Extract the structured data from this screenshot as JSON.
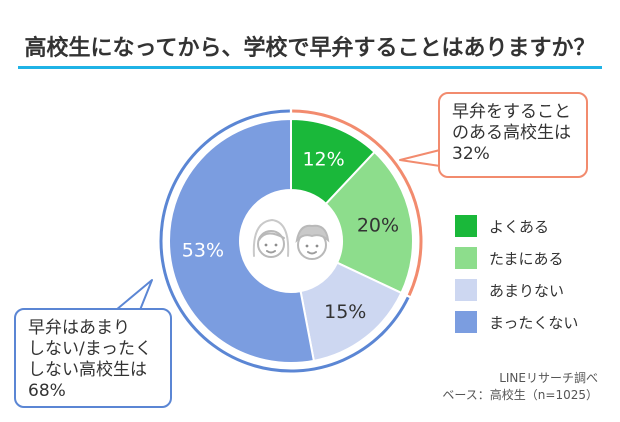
{
  "title": "高校生になってから、学校で早弁することはありますか？",
  "colors": {
    "accent": "#1fb3e6",
    "yes_ring": "#f28b6e",
    "no_ring": "#5b86d4"
  },
  "chart_data": {
    "type": "pie",
    "style": "donut",
    "categories": [
      "よくある",
      "たまにある",
      "あまりない",
      "まったくない"
    ],
    "values": [
      12,
      20,
      15,
      53
    ],
    "value_labels": [
      "12%",
      "20%",
      "15%",
      "53%"
    ],
    "colors": [
      "#1ab83a",
      "#8ddd8c",
      "#cdd7f1",
      "#7b9de0"
    ],
    "legend_position": "right",
    "center_icon": "student-faces-icon"
  },
  "callouts": {
    "yes": {
      "lines": [
        "早弁をすること",
        "のある高校生は",
        "32%"
      ]
    },
    "no": {
      "lines": [
        "早弁はあまり",
        "しない/まったく",
        "しない高校生は",
        "68%"
      ]
    }
  },
  "source": {
    "line1": "LINEリサーチ調べ",
    "line2": "ベース：高校生（n=1025）"
  }
}
